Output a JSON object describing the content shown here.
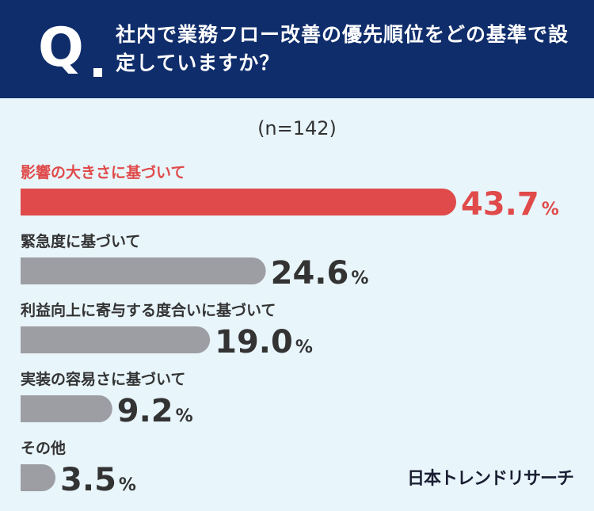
{
  "header": {
    "q_label": "Q",
    "question": "社内で業務フロー改善の優先順位をどの基準で設定していますか？"
  },
  "sample_size": "(n=142)",
  "brand": "日本トレンドリサーチ",
  "colors": {
    "header_bg": "#0f2d6b",
    "background": "#e8f5fb",
    "highlight": "#e04a4a",
    "bar_gray": "#9d9ea3",
    "value_text": "#333333"
  },
  "chart_data": {
    "type": "bar",
    "orientation": "horizontal",
    "categories": [
      "影響の大きさに基づいて",
      "緊急度に基づいて",
      "利益向上に寄与する度合いに基づいて",
      "実装の容易さに基づいて",
      "その他"
    ],
    "values": [
      43.7,
      24.6,
      19.0,
      9.2,
      3.5
    ],
    "value_labels": [
      "43.7",
      "24.6",
      "19.0",
      "9.2",
      "3.5"
    ],
    "unit": "%",
    "highlight_index": 0,
    "title": "",
    "xlabel": "",
    "ylabel": ""
  }
}
